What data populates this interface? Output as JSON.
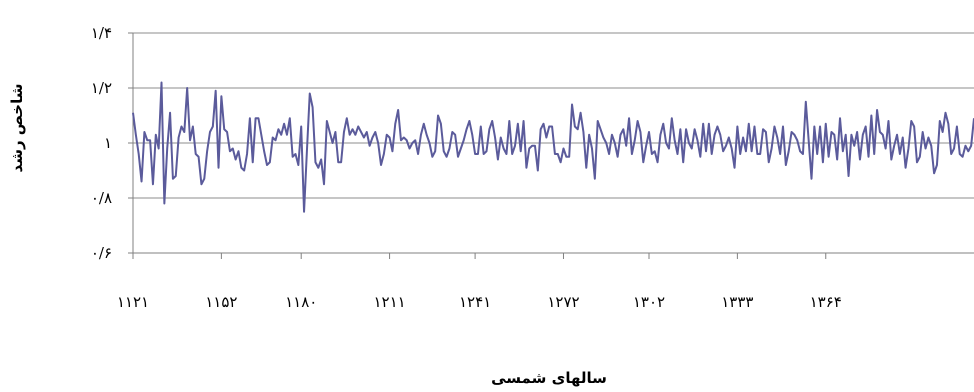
{
  "chart_data": {
    "type": "line",
    "xlabel": "سالهای شمسی",
    "ylabel": "شاخص رشد",
    "x_range": [
      1121,
      1416
    ],
    "ylim": [
      0.6,
      1.4
    ],
    "y_ticks": [
      {
        "value": 0.6,
        "label": "۰/۶"
      },
      {
        "value": 0.8,
        "label": "۰/۸"
      },
      {
        "value": 1.0,
        "label": "۱"
      },
      {
        "value": 1.2,
        "label": "۱/۲"
      },
      {
        "value": 1.4,
        "label": "۱/۴"
      }
    ],
    "x_ticks": [
      {
        "value": 1121,
        "label": "۱۱۲۱"
      },
      {
        "value": 1152,
        "label": "۱۱۵۲"
      },
      {
        "value": 1180,
        "label": "۱۱۸۰"
      },
      {
        "value": 1211,
        "label": "۱۲۱۱"
      },
      {
        "value": 1241,
        "label": "۱۲۴۱"
      },
      {
        "value": 1272,
        "label": "۱۲۷۲"
      },
      {
        "value": 1302,
        "label": "۱۳۰۲"
      },
      {
        "value": 1333,
        "label": "۱۳۳۳"
      },
      {
        "value": 1364,
        "label": "۱۳۶۴"
      }
    ],
    "grid": "horizontal",
    "line_color": "#5B5B9B",
    "points": [
      [
        1121,
        1.11
      ],
      [
        1122,
        1.03
      ],
      [
        1123,
        0.96
      ],
      [
        1124,
        0.86
      ],
      [
        1125,
        1.04
      ],
      [
        1126,
        1.01
      ],
      [
        1127,
        1.01
      ],
      [
        1128,
        0.85
      ],
      [
        1129,
        1.03
      ],
      [
        1130,
        0.98
      ],
      [
        1131,
        1.22
      ],
      [
        1132,
        0.78
      ],
      [
        1133,
        0.98
      ],
      [
        1134,
        1.11
      ],
      [
        1135,
        0.87
      ],
      [
        1136,
        0.88
      ],
      [
        1137,
        1.02
      ],
      [
        1138,
        1.06
      ],
      [
        1139,
        1.04
      ],
      [
        1140,
        1.2
      ],
      [
        1141,
        1.01
      ],
      [
        1142,
        1.06
      ],
      [
        1143,
        0.96
      ],
      [
        1144,
        0.95
      ],
      [
        1145,
        0.85
      ],
      [
        1146,
        0.87
      ],
      [
        1147,
        0.97
      ],
      [
        1148,
        1.04
      ],
      [
        1149,
        1.06
      ],
      [
        1150,
        1.19
      ],
      [
        1151,
        0.91
      ],
      [
        1152,
        1.17
      ],
      [
        1153,
        1.05
      ],
      [
        1154,
        1.04
      ],
      [
        1155,
        0.97
      ],
      [
        1156,
        0.98
      ],
      [
        1157,
        0.94
      ],
      [
        1158,
        0.97
      ],
      [
        1159,
        0.91
      ],
      [
        1160,
        0.9
      ],
      [
        1161,
        0.96
      ],
      [
        1162,
        1.09
      ],
      [
        1163,
        0.93
      ],
      [
        1164,
        1.09
      ],
      [
        1165,
        1.09
      ],
      [
        1166,
        1.03
      ],
      [
        1167,
        0.97
      ],
      [
        1168,
        0.92
      ],
      [
        1169,
        0.93
      ],
      [
        1170,
        1.02
      ],
      [
        1171,
        1.01
      ],
      [
        1172,
        1.05
      ],
      [
        1173,
        1.03
      ],
      [
        1174,
        1.07
      ],
      [
        1175,
        1.03
      ],
      [
        1176,
        1.09
      ],
      [
        1177,
        0.95
      ],
      [
        1178,
        0.96
      ],
      [
        1179,
        0.92
      ],
      [
        1180,
        1.06
      ],
      [
        1181,
        0.75
      ],
      [
        1182,
        0.97
      ],
      [
        1183,
        1.18
      ],
      [
        1184,
        1.13
      ],
      [
        1185,
        0.93
      ],
      [
        1186,
        0.91
      ],
      [
        1187,
        0.94
      ],
      [
        1188,
        0.85
      ],
      [
        1189,
        1.08
      ],
      [
        1190,
        1.04
      ],
      [
        1191,
        1.0
      ],
      [
        1192,
        1.04
      ],
      [
        1193,
        0.93
      ],
      [
        1194,
        0.93
      ],
      [
        1195,
        1.04
      ],
      [
        1196,
        1.09
      ],
      [
        1197,
        1.03
      ],
      [
        1198,
        1.05
      ],
      [
        1199,
        1.03
      ],
      [
        1200,
        1.06
      ],
      [
        1201,
        1.04
      ],
      [
        1202,
        1.02
      ],
      [
        1203,
        1.04
      ],
      [
        1204,
        0.99
      ],
      [
        1205,
        1.02
      ],
      [
        1206,
        1.04
      ],
      [
        1207,
        1.0
      ],
      [
        1208,
        0.92
      ],
      [
        1209,
        0.96
      ],
      [
        1210,
        1.03
      ],
      [
        1211,
        1.02
      ],
      [
        1212,
        0.97
      ],
      [
        1213,
        1.07
      ],
      [
        1214,
        1.12
      ],
      [
        1215,
        1.01
      ],
      [
        1216,
        1.02
      ],
      [
        1217,
        1.01
      ],
      [
        1218,
        0.98
      ],
      [
        1219,
        1.0
      ],
      [
        1220,
        1.01
      ],
      [
        1221,
        0.96
      ],
      [
        1222,
        1.03
      ],
      [
        1223,
        1.07
      ],
      [
        1224,
        1.03
      ],
      [
        1225,
        1.0
      ],
      [
        1226,
        0.95
      ],
      [
        1227,
        0.97
      ],
      [
        1228,
        1.1
      ],
      [
        1229,
        1.07
      ],
      [
        1230,
        0.97
      ],
      [
        1231,
        0.95
      ],
      [
        1232,
        0.98
      ],
      [
        1233,
        1.04
      ],
      [
        1234,
        1.03
      ],
      [
        1235,
        0.95
      ],
      [
        1236,
        0.98
      ],
      [
        1237,
        1.01
      ],
      [
        1238,
        1.05
      ],
      [
        1239,
        1.08
      ],
      [
        1240,
        1.03
      ],
      [
        1241,
        0.96
      ],
      [
        1242,
        0.96
      ],
      [
        1243,
        1.06
      ],
      [
        1244,
        0.96
      ],
      [
        1245,
        0.97
      ],
      [
        1246,
        1.05
      ],
      [
        1247,
        1.08
      ],
      [
        1248,
        1.02
      ],
      [
        1249,
        0.94
      ],
      [
        1250,
        1.02
      ],
      [
        1251,
        0.98
      ],
      [
        1252,
        0.96
      ],
      [
        1253,
        1.08
      ],
      [
        1254,
        0.96
      ],
      [
        1255,
        0.99
      ],
      [
        1256,
        1.07
      ],
      [
        1257,
        0.97
      ],
      [
        1258,
        1.08
      ],
      [
        1259,
        0.91
      ],
      [
        1260,
        0.98
      ],
      [
        1261,
        0.99
      ],
      [
        1262,
        0.99
      ],
      [
        1263,
        0.9
      ],
      [
        1264,
        1.05
      ],
      [
        1265,
        1.07
      ],
      [
        1266,
        1.02
      ],
      [
        1267,
        1.06
      ],
      [
        1268,
        1.06
      ],
      [
        1269,
        0.96
      ],
      [
        1270,
        0.96
      ],
      [
        1271,
        0.93
      ],
      [
        1272,
        0.98
      ],
      [
        1273,
        0.95
      ],
      [
        1274,
        0.95
      ],
      [
        1275,
        1.14
      ],
      [
        1276,
        1.06
      ],
      [
        1277,
        1.05
      ],
      [
        1278,
        1.11
      ],
      [
        1279,
        1.04
      ],
      [
        1280,
        0.91
      ],
      [
        1281,
        1.03
      ],
      [
        1282,
        0.98
      ],
      [
        1283,
        0.87
      ],
      [
        1284,
        1.08
      ],
      [
        1285,
        1.05
      ],
      [
        1286,
        1.02
      ],
      [
        1287,
        1.0
      ],
      [
        1288,
        0.96
      ],
      [
        1289,
        1.03
      ],
      [
        1290,
        1.0
      ],
      [
        1291,
        0.95
      ],
      [
        1292,
        1.03
      ],
      [
        1293,
        1.05
      ],
      [
        1294,
        0.99
      ],
      [
        1295,
        1.09
      ],
      [
        1296,
        0.96
      ],
      [
        1297,
        1.01
      ],
      [
        1298,
        1.08
      ],
      [
        1299,
        1.04
      ],
      [
        1300,
        0.93
      ],
      [
        1301,
        0.99
      ],
      [
        1302,
        1.04
      ],
      [
        1303,
        0.96
      ],
      [
        1304,
        0.97
      ],
      [
        1305,
        0.93
      ],
      [
        1306,
        1.03
      ],
      [
        1307,
        1.07
      ],
      [
        1308,
        1.0
      ],
      [
        1309,
        0.98
      ],
      [
        1310,
        1.09
      ],
      [
        1311,
        1.01
      ],
      [
        1312,
        0.96
      ],
      [
        1313,
        1.05
      ],
      [
        1314,
        0.93
      ],
      [
        1315,
        1.05
      ],
      [
        1316,
        1.0
      ],
      [
        1317,
        0.98
      ],
      [
        1318,
        1.05
      ],
      [
        1319,
        1.01
      ],
      [
        1320,
        0.95
      ],
      [
        1321,
        1.07
      ],
      [
        1322,
        0.97
      ],
      [
        1323,
        1.07
      ],
      [
        1324,
        0.96
      ],
      [
        1325,
        1.03
      ],
      [
        1326,
        1.06
      ],
      [
        1327,
        1.03
      ],
      [
        1328,
        0.97
      ],
      [
        1329,
        0.99
      ],
      [
        1330,
        1.02
      ],
      [
        1331,
        0.98
      ],
      [
        1332,
        0.91
      ],
      [
        1333,
        1.06
      ],
      [
        1334,
        0.96
      ],
      [
        1335,
        1.02
      ],
      [
        1336,
        0.97
      ],
      [
        1337,
        1.07
      ],
      [
        1338,
        0.97
      ],
      [
        1339,
        1.06
      ],
      [
        1340,
        0.96
      ],
      [
        1341,
        0.96
      ],
      [
        1342,
        1.05
      ],
      [
        1343,
        1.04
      ],
      [
        1344,
        0.93
      ],
      [
        1345,
        0.98
      ],
      [
        1346,
        1.06
      ],
      [
        1347,
        1.02
      ],
      [
        1348,
        0.96
      ],
      [
        1349,
        1.06
      ],
      [
        1350,
        0.92
      ],
      [
        1351,
        0.97
      ],
      [
        1352,
        1.04
      ],
      [
        1353,
        1.03
      ],
      [
        1354,
        1.01
      ],
      [
        1355,
        0.97
      ],
      [
        1356,
        0.96
      ],
      [
        1357,
        1.15
      ],
      [
        1358,
        1.01
      ],
      [
        1359,
        0.87
      ],
      [
        1360,
        1.06
      ],
      [
        1361,
        0.96
      ],
      [
        1362,
        1.06
      ],
      [
        1363,
        0.93
      ],
      [
        1364,
        1.07
      ],
      [
        1365,
        0.95
      ],
      [
        1366,
        1.04
      ],
      [
        1367,
        1.03
      ],
      [
        1368,
        0.94
      ],
      [
        1369,
        1.09
      ],
      [
        1370,
        0.97
      ],
      [
        1371,
        1.03
      ],
      [
        1372,
        0.88
      ],
      [
        1373,
        1.03
      ],
      [
        1374,
        0.99
      ],
      [
        1375,
        1.04
      ],
      [
        1376,
        0.94
      ],
      [
        1377,
        1.03
      ],
      [
        1378,
        1.06
      ],
      [
        1379,
        0.95
      ],
      [
        1380,
        1.1
      ],
      [
        1381,
        0.96
      ],
      [
        1382,
        1.12
      ],
      [
        1383,
        1.04
      ],
      [
        1384,
        1.03
      ],
      [
        1385,
        0.98
      ],
      [
        1386,
        1.08
      ],
      [
        1387,
        0.94
      ],
      [
        1388,
        0.99
      ],
      [
        1389,
        1.03
      ],
      [
        1390,
        0.96
      ],
      [
        1391,
        1.02
      ],
      [
        1392,
        0.91
      ],
      [
        1393,
        0.98
      ],
      [
        1394,
        1.08
      ],
      [
        1395,
        1.06
      ],
      [
        1396,
        0.93
      ],
      [
        1397,
        0.95
      ],
      [
        1398,
        1.04
      ],
      [
        1399,
        0.98
      ],
      [
        1400,
        1.02
      ],
      [
        1401,
        0.99
      ],
      [
        1402,
        0.89
      ],
      [
        1403,
        0.92
      ],
      [
        1404,
        1.08
      ],
      [
        1405,
        1.04
      ],
      [
        1406,
        1.11
      ],
      [
        1407,
        1.07
      ],
      [
        1408,
        0.96
      ],
      [
        1409,
        0.98
      ],
      [
        1410,
        1.06
      ],
      [
        1411,
        0.96
      ],
      [
        1412,
        0.95
      ],
      [
        1413,
        0.99
      ],
      [
        1414,
        0.97
      ],
      [
        1415,
        0.99
      ],
      [
        1416,
        1.09
      ]
    ]
  }
}
